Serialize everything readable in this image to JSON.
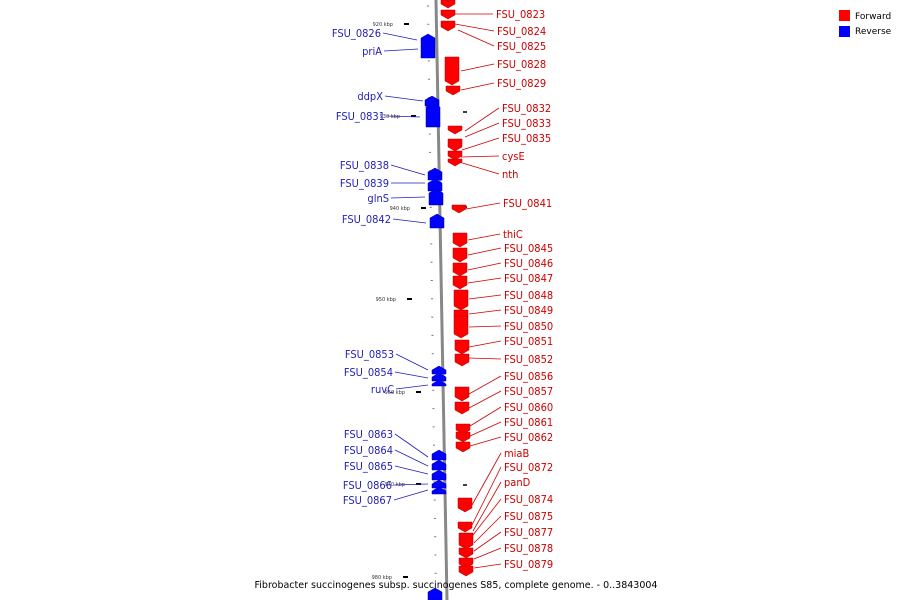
{
  "caption": "Fibrobacter succinogenes subsp. succinogenes S85, complete genome. - 0..3843004",
  "legend": [
    {
      "label": "Forward",
      "color": "#ff0000"
    },
    {
      "label": "Reverse",
      "color": "#0000ff"
    }
  ],
  "colors": {
    "forward": "#ff0000",
    "forward_label": "#cc0000",
    "reverse": "#0000ff",
    "reverse_label": "#1f1fb8",
    "backbone": "#888888"
  },
  "ticks": [
    "920 kbp",
    "930 kbp",
    "940 kbp",
    "950 kbp",
    "960 kbp",
    "970 kbp",
    "980 kbp"
  ],
  "forward_labels": [
    "FSU_0823",
    "FSU_0824",
    "FSU_0825",
    "FSU_0828",
    "FSU_0829",
    "FSU_0832",
    "FSU_0833",
    "FSU_0835",
    "cysE",
    "nth",
    "FSU_0841",
    "thiC",
    "FSU_0845",
    "FSU_0846",
    "FSU_0847",
    "FSU_0848",
    "FSU_0849",
    "FSU_0850",
    "FSU_0851",
    "FSU_0852",
    "FSU_0856",
    "FSU_0857",
    "FSU_0860",
    "FSU_0861",
    "FSU_0862",
    "miaB",
    "FSU_0872",
    "panD",
    "FSU_0874",
    "FSU_0875",
    "FSU_0877",
    "FSU_0878",
    "FSU_0879"
  ],
  "reverse_labels": [
    "FSU_0826",
    "priA",
    "ddpX",
    "FSU_0831",
    "FSU_0838",
    "FSU_0839",
    "glnS",
    "FSU_0842",
    "FSU_0853",
    "FSU_0854",
    "ruvC",
    "FSU_0863",
    "FSU_0864",
    "FSU_0865",
    "FSU_0866",
    "FSU_0867"
  ]
}
